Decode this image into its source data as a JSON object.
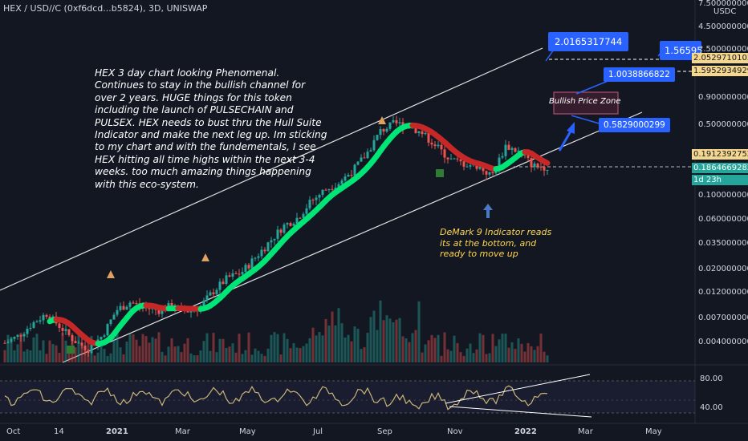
{
  "header": {
    "symbol": "HEX / USD//C (0xf6dcd...b5824), 3D, UNISWAP"
  },
  "currency": "USDC",
  "price_axis": [
    "7.5000000000",
    "4.5000000000",
    "2.5000000000",
    "0.9000000000",
    "0.5000000000",
    "0.1000000000",
    "0.0600000000",
    "0.0350000000",
    "0.0200000000",
    "0.0120000000",
    "0.0070000000",
    "0.0040000000"
  ],
  "price_tags": {
    "target_high": "2.0529710103",
    "target_low": "1.5952934929",
    "level": "0.1912392752",
    "current": "0.1864669282",
    "countdown": "1d 23h"
  },
  "osc_axis": [
    "80.00",
    "40.00"
  ],
  "time_axis": [
    "Oct",
    "14",
    "2021",
    "Mar",
    "May",
    "Jul",
    "Sep",
    "Nov",
    "2022",
    "Mar",
    "May"
  ],
  "callouts": {
    "top": "2.0165317744",
    "right": "1.56595",
    "mid": "1.0038866822",
    "low": "0.5829000299"
  },
  "zone_label": "Bullish Price Zone",
  "notes": {
    "main": "HEX 3 day chart looking Phenomenal. Continues to stay in the bullish channel for over 2 years. HUGE things for this token including the launch of PULSECHAIN and PULSEX. HEX needs to bust thru the Hull Suite Indicator and make the next leg up. Im sticking to my chart and with the fundementals, I see HEX hitting all time highs within the next 3-4 weeks. too much amazing things happening with this eco-system.",
    "demark": "DeMark 9 Indicator reads its at the bottom, and ready to move up"
  },
  "colors": {
    "background": "#131722",
    "up": "#26a69a",
    "down": "#ef5350",
    "hull_up": "#00e676",
    "hull_down": "#c62828",
    "callout": "#2962ff",
    "rsi": "#c9b67a"
  },
  "chart_data": {
    "type": "candlestick",
    "scale": "log",
    "x_labels": [
      "Oct",
      "14",
      "2021",
      "Mar",
      "May",
      "Jul",
      "Sep",
      "Nov",
      "2022",
      "Mar",
      "May"
    ],
    "x_positions_note": "",
    "close_approx": [
      0.0038,
      0.0045,
      0.006,
      0.0075,
      0.0055,
      0.004,
      0.0033,
      0.0045,
      0.008,
      0.0095,
      0.0085,
      0.008,
      0.0088,
      0.0078,
      0.0085,
      0.012,
      0.016,
      0.018,
      0.025,
      0.035,
      0.05,
      0.06,
      0.085,
      0.11,
      0.13,
      0.17,
      0.25,
      0.42,
      0.5,
      0.48,
      0.4,
      0.3,
      0.22,
      0.2,
      0.19,
      0.15,
      0.3,
      0.26,
      0.19,
      0.186
    ],
    "series": [
      {
        "name": "",
        "type": "volume"
      },
      {
        "name": "",
        "type": "rsi",
        "range": [
          20,
          100
        ],
        "bands": [
          70,
          30
        ]
      }
    ]
  }
}
